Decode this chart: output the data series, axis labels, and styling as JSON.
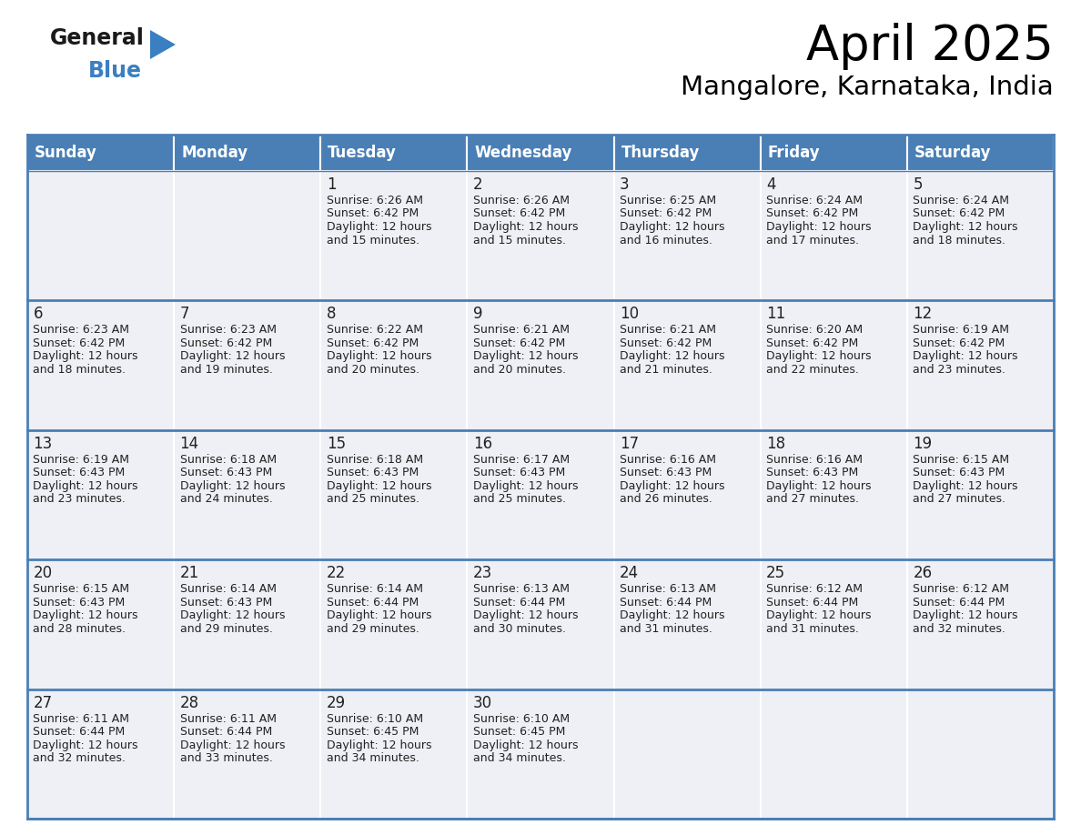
{
  "title": "April 2025",
  "subtitle": "Mangalore, Karnataka, India",
  "header_color": "#4a7fb5",
  "header_text_color": "#ffffff",
  "cell_bg_color": "#eef0f5",
  "cell_bg_empty": "#eef0f5",
  "cell_border_color": "#4a7fb5",
  "day_num_color": "#222222",
  "text_color": "#222222",
  "days_of_week": [
    "Sunday",
    "Monday",
    "Tuesday",
    "Wednesday",
    "Thursday",
    "Friday",
    "Saturday"
  ],
  "calendar_data": [
    [
      {
        "day": "",
        "sunrise": "",
        "sunset": "",
        "daylight_h": "",
        "daylight_m": ""
      },
      {
        "day": "",
        "sunrise": "",
        "sunset": "",
        "daylight_h": "",
        "daylight_m": ""
      },
      {
        "day": "1",
        "sunrise": "6:26 AM",
        "sunset": "6:42 PM",
        "daylight_h": "12 hours",
        "daylight_m": "15 minutes."
      },
      {
        "day": "2",
        "sunrise": "6:26 AM",
        "sunset": "6:42 PM",
        "daylight_h": "12 hours",
        "daylight_m": "15 minutes."
      },
      {
        "day": "3",
        "sunrise": "6:25 AM",
        "sunset": "6:42 PM",
        "daylight_h": "12 hours",
        "daylight_m": "16 minutes."
      },
      {
        "day": "4",
        "sunrise": "6:24 AM",
        "sunset": "6:42 PM",
        "daylight_h": "12 hours",
        "daylight_m": "17 minutes."
      },
      {
        "day": "5",
        "sunrise": "6:24 AM",
        "sunset": "6:42 PM",
        "daylight_h": "12 hours",
        "daylight_m": "18 minutes."
      }
    ],
    [
      {
        "day": "6",
        "sunrise": "6:23 AM",
        "sunset": "6:42 PM",
        "daylight_h": "12 hours",
        "daylight_m": "18 minutes."
      },
      {
        "day": "7",
        "sunrise": "6:23 AM",
        "sunset": "6:42 PM",
        "daylight_h": "12 hours",
        "daylight_m": "19 minutes."
      },
      {
        "day": "8",
        "sunrise": "6:22 AM",
        "sunset": "6:42 PM",
        "daylight_h": "12 hours",
        "daylight_m": "20 minutes."
      },
      {
        "day": "9",
        "sunrise": "6:21 AM",
        "sunset": "6:42 PM",
        "daylight_h": "12 hours",
        "daylight_m": "20 minutes."
      },
      {
        "day": "10",
        "sunrise": "6:21 AM",
        "sunset": "6:42 PM",
        "daylight_h": "12 hours",
        "daylight_m": "21 minutes."
      },
      {
        "day": "11",
        "sunrise": "6:20 AM",
        "sunset": "6:42 PM",
        "daylight_h": "12 hours",
        "daylight_m": "22 minutes."
      },
      {
        "day": "12",
        "sunrise": "6:19 AM",
        "sunset": "6:42 PM",
        "daylight_h": "12 hours",
        "daylight_m": "23 minutes."
      }
    ],
    [
      {
        "day": "13",
        "sunrise": "6:19 AM",
        "sunset": "6:43 PM",
        "daylight_h": "12 hours",
        "daylight_m": "23 minutes."
      },
      {
        "day": "14",
        "sunrise": "6:18 AM",
        "sunset": "6:43 PM",
        "daylight_h": "12 hours",
        "daylight_m": "24 minutes."
      },
      {
        "day": "15",
        "sunrise": "6:18 AM",
        "sunset": "6:43 PM",
        "daylight_h": "12 hours",
        "daylight_m": "25 minutes."
      },
      {
        "day": "16",
        "sunrise": "6:17 AM",
        "sunset": "6:43 PM",
        "daylight_h": "12 hours",
        "daylight_m": "25 minutes."
      },
      {
        "day": "17",
        "sunrise": "6:16 AM",
        "sunset": "6:43 PM",
        "daylight_h": "12 hours",
        "daylight_m": "26 minutes."
      },
      {
        "day": "18",
        "sunrise": "6:16 AM",
        "sunset": "6:43 PM",
        "daylight_h": "12 hours",
        "daylight_m": "27 minutes."
      },
      {
        "day": "19",
        "sunrise": "6:15 AM",
        "sunset": "6:43 PM",
        "daylight_h": "12 hours",
        "daylight_m": "27 minutes."
      }
    ],
    [
      {
        "day": "20",
        "sunrise": "6:15 AM",
        "sunset": "6:43 PM",
        "daylight_h": "12 hours",
        "daylight_m": "28 minutes."
      },
      {
        "day": "21",
        "sunrise": "6:14 AM",
        "sunset": "6:43 PM",
        "daylight_h": "12 hours",
        "daylight_m": "29 minutes."
      },
      {
        "day": "22",
        "sunrise": "6:14 AM",
        "sunset": "6:44 PM",
        "daylight_h": "12 hours",
        "daylight_m": "29 minutes."
      },
      {
        "day": "23",
        "sunrise": "6:13 AM",
        "sunset": "6:44 PM",
        "daylight_h": "12 hours",
        "daylight_m": "30 minutes."
      },
      {
        "day": "24",
        "sunrise": "6:13 AM",
        "sunset": "6:44 PM",
        "daylight_h": "12 hours",
        "daylight_m": "31 minutes."
      },
      {
        "day": "25",
        "sunrise": "6:12 AM",
        "sunset": "6:44 PM",
        "daylight_h": "12 hours",
        "daylight_m": "31 minutes."
      },
      {
        "day": "26",
        "sunrise": "6:12 AM",
        "sunset": "6:44 PM",
        "daylight_h": "12 hours",
        "daylight_m": "32 minutes."
      }
    ],
    [
      {
        "day": "27",
        "sunrise": "6:11 AM",
        "sunset": "6:44 PM",
        "daylight_h": "12 hours",
        "daylight_m": "32 minutes."
      },
      {
        "day": "28",
        "sunrise": "6:11 AM",
        "sunset": "6:44 PM",
        "daylight_h": "12 hours",
        "daylight_m": "33 minutes."
      },
      {
        "day": "29",
        "sunrise": "6:10 AM",
        "sunset": "6:45 PM",
        "daylight_h": "12 hours",
        "daylight_m": "34 minutes."
      },
      {
        "day": "30",
        "sunrise": "6:10 AM",
        "sunset": "6:45 PM",
        "daylight_h": "12 hours",
        "daylight_m": "34 minutes."
      },
      {
        "day": "",
        "sunrise": "",
        "sunset": "",
        "daylight_h": "",
        "daylight_m": ""
      },
      {
        "day": "",
        "sunrise": "",
        "sunset": "",
        "daylight_h": "",
        "daylight_m": ""
      },
      {
        "day": "",
        "sunrise": "",
        "sunset": "",
        "daylight_h": "",
        "daylight_m": ""
      }
    ]
  ],
  "logo_general_color": "#1a1a1a",
  "logo_blue_color": "#3a7fc1",
  "title_fontsize": 38,
  "subtitle_fontsize": 21,
  "header_fontsize": 12,
  "daynum_fontsize": 12,
  "cell_text_fontsize": 9
}
